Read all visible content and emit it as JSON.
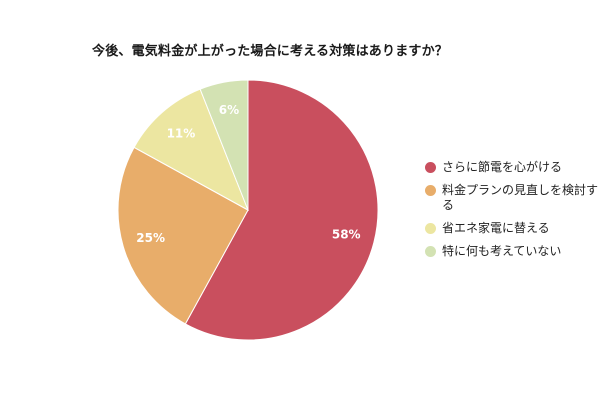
{
  "chart_data": {
    "type": "pie",
    "title": "今後、電気料金が上がった場合に考える対策はありますか？",
    "categories": [
      "さらに節電を心がける",
      "料金プランの見直しを検討する",
      "省エネ家電に替える",
      "特に何も考えていない"
    ],
    "values": [
      58,
      25,
      11,
      6
    ],
    "value_labels": [
      "58%",
      "25%",
      "11%",
      "6%"
    ],
    "colors": [
      "#c94f5e",
      "#e8ad6a",
      "#ece6a1",
      "#d3e2b3"
    ],
    "start": "12 o'clock",
    "direction": "clockwise",
    "legend_position": "right"
  }
}
